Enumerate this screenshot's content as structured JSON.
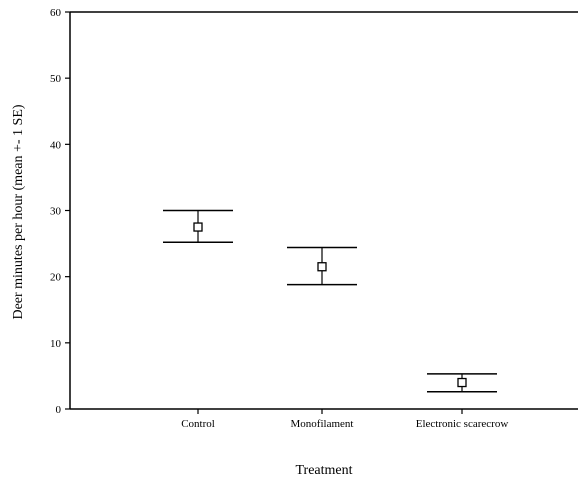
{
  "chart_data": {
    "type": "scatter",
    "title": "",
    "xlabel": "Treatment",
    "ylabel": "Deer minutes per hour (mean +- 1 SE)",
    "categories": [
      "Control",
      "Monofilament",
      "Electronic scarecrow"
    ],
    "values": [
      27.5,
      21.5,
      4.0
    ],
    "error_upper": [
      30.0,
      24.4,
      5.3
    ],
    "error_lower": [
      25.2,
      18.8,
      2.6
    ],
    "ylim": [
      0,
      60
    ],
    "yticks": [
      0,
      10,
      20,
      30,
      40,
      50,
      60
    ],
    "grid": false,
    "legend": "none",
    "marker": "open-square"
  }
}
